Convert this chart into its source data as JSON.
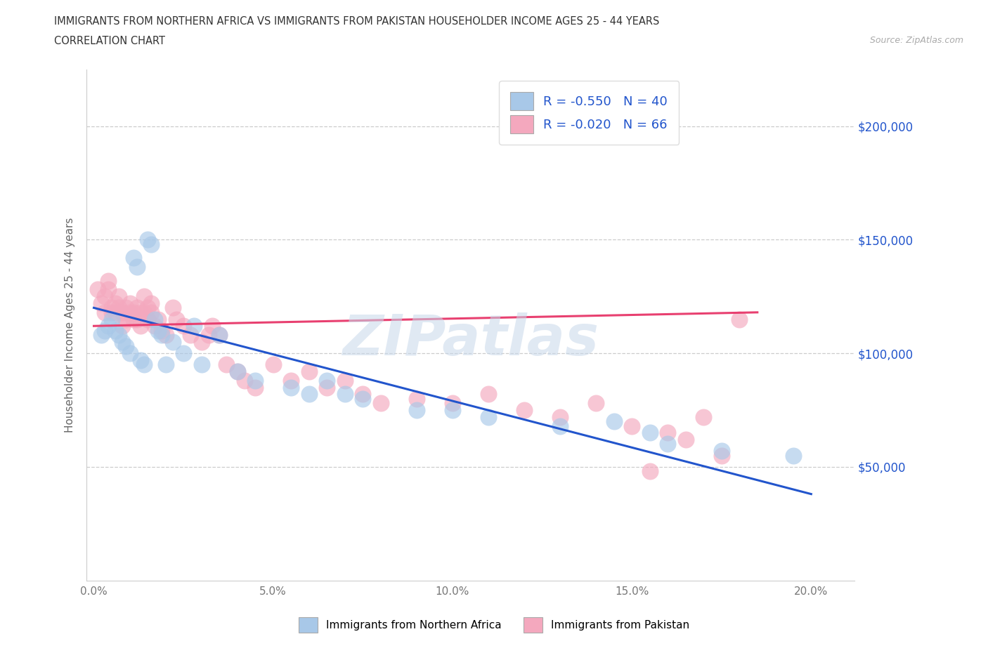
{
  "title_line1": "IMMIGRANTS FROM NORTHERN AFRICA VS IMMIGRANTS FROM PAKISTAN HOUSEHOLDER INCOME AGES 25 - 44 YEARS",
  "title_line2": "CORRELATION CHART",
  "source": "Source: ZipAtlas.com",
  "ylabel": "Householder Income Ages 25 - 44 years",
  "xlim": [
    -0.002,
    0.212
  ],
  "ylim": [
    0,
    225000
  ],
  "yticks": [
    50000,
    100000,
    150000,
    200000
  ],
  "ytick_labels": [
    "$50,000",
    "$100,000",
    "$150,000",
    "$200,000"
  ],
  "xticks": [
    0.0,
    0.05,
    0.1,
    0.15,
    0.2
  ],
  "xtick_labels": [
    "0.0%",
    "5.0%",
    "10.0%",
    "15.0%",
    "20.0%"
  ],
  "legend_label1": "Immigrants from Northern Africa",
  "legend_label2": "Immigrants from Pakistan",
  "r1": "-0.550",
  "n1": "40",
  "r2": "-0.020",
  "n2": "66",
  "color_blue": "#a8c8e8",
  "color_pink": "#f4a8be",
  "line_color_blue": "#2255cc",
  "line_color_pink": "#e84070",
  "bg_color": "#ffffff",
  "watermark": "ZIPatlas",
  "blue_x": [
    0.002,
    0.003,
    0.004,
    0.005,
    0.006,
    0.007,
    0.008,
    0.009,
    0.01,
    0.011,
    0.012,
    0.013,
    0.014,
    0.015,
    0.016,
    0.017,
    0.018,
    0.019,
    0.02,
    0.022,
    0.025,
    0.028,
    0.03,
    0.035,
    0.04,
    0.045,
    0.055,
    0.06,
    0.065,
    0.07,
    0.075,
    0.09,
    0.1,
    0.11,
    0.13,
    0.145,
    0.155,
    0.16,
    0.175,
    0.195
  ],
  "blue_y": [
    108000,
    110000,
    112000,
    115000,
    110000,
    108000,
    105000,
    103000,
    100000,
    142000,
    138000,
    97000,
    95000,
    150000,
    148000,
    115000,
    110000,
    108000,
    95000,
    105000,
    100000,
    112000,
    95000,
    108000,
    92000,
    88000,
    85000,
    82000,
    88000,
    82000,
    80000,
    75000,
    75000,
    72000,
    68000,
    70000,
    65000,
    60000,
    57000,
    55000
  ],
  "pink_x": [
    0.001,
    0.002,
    0.003,
    0.003,
    0.004,
    0.004,
    0.005,
    0.005,
    0.006,
    0.006,
    0.007,
    0.007,
    0.008,
    0.008,
    0.009,
    0.009,
    0.01,
    0.01,
    0.011,
    0.011,
    0.012,
    0.012,
    0.013,
    0.013,
    0.014,
    0.014,
    0.015,
    0.015,
    0.016,
    0.016,
    0.017,
    0.018,
    0.019,
    0.02,
    0.022,
    0.023,
    0.025,
    0.027,
    0.03,
    0.032,
    0.033,
    0.035,
    0.037,
    0.04,
    0.042,
    0.045,
    0.05,
    0.055,
    0.06,
    0.065,
    0.07,
    0.075,
    0.08,
    0.09,
    0.1,
    0.11,
    0.12,
    0.13,
    0.14,
    0.15,
    0.155,
    0.16,
    0.165,
    0.17,
    0.175,
    0.18
  ],
  "pink_y": [
    128000,
    122000,
    118000,
    125000,
    128000,
    132000,
    120000,
    118000,
    122000,
    118000,
    125000,
    120000,
    118000,
    112000,
    115000,
    120000,
    118000,
    122000,
    115000,
    118000,
    120000,
    115000,
    118000,
    112000,
    125000,
    118000,
    120000,
    115000,
    118000,
    122000,
    112000,
    115000,
    110000,
    108000,
    120000,
    115000,
    112000,
    108000,
    105000,
    108000,
    112000,
    108000,
    95000,
    92000,
    88000,
    85000,
    95000,
    88000,
    92000,
    85000,
    88000,
    82000,
    78000,
    80000,
    78000,
    82000,
    75000,
    72000,
    78000,
    68000,
    48000,
    65000,
    62000,
    72000,
    55000,
    115000
  ],
  "blue_line_x": [
    0.0,
    0.2
  ],
  "blue_line_y": [
    120000,
    38000
  ],
  "pink_line_x": [
    0.0,
    0.185
  ],
  "pink_line_y": [
    112000,
    118000
  ]
}
